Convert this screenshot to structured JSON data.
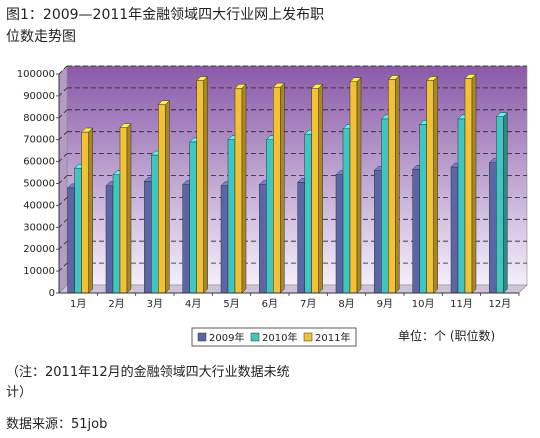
{
  "title": "图1：2009—2011年金融领域四大行业网上发布职位数走势图",
  "unit_note": "单位：个 (职位数)",
  "note": "（注：2011年12月的金融领域四大行业数据未统计）",
  "source": "数据来源：51job",
  "colors": {
    "plot_top": "#8a5aa8",
    "plot_bottom": "#f3eefb",
    "series": [
      "#5a66a6",
      "#3fc6c0",
      "#f2c233"
    ]
  },
  "chart_data": {
    "type": "bar",
    "categories": [
      "1月",
      "2月",
      "3月",
      "4月",
      "5月",
      "6月",
      "7月",
      "8月",
      "9月",
      "10月",
      "11月",
      "12月"
    ],
    "series": [
      {
        "name": "2009年",
        "values": [
          48000,
          49000,
          51000,
          49500,
          49000,
          49500,
          50500,
          54000,
          56000,
          56500,
          57500,
          59500
        ]
      },
      {
        "name": "2010年",
        "values": [
          57000,
          54000,
          63000,
          69000,
          70000,
          70000,
          72500,
          75000,
          79500,
          77000,
          79500,
          80500
        ]
      },
      {
        "name": "2011年",
        "values": [
          73500,
          75500,
          86000,
          97000,
          93500,
          94000,
          93500,
          96500,
          97500,
          97000,
          98000,
          null
        ]
      }
    ],
    "ylim": [
      0,
      100000
    ],
    "yticks": [
      0,
      10000,
      20000,
      30000,
      40000,
      50000,
      60000,
      70000,
      80000,
      90000,
      100000
    ],
    "grid": true,
    "legend_position": "bottom"
  }
}
